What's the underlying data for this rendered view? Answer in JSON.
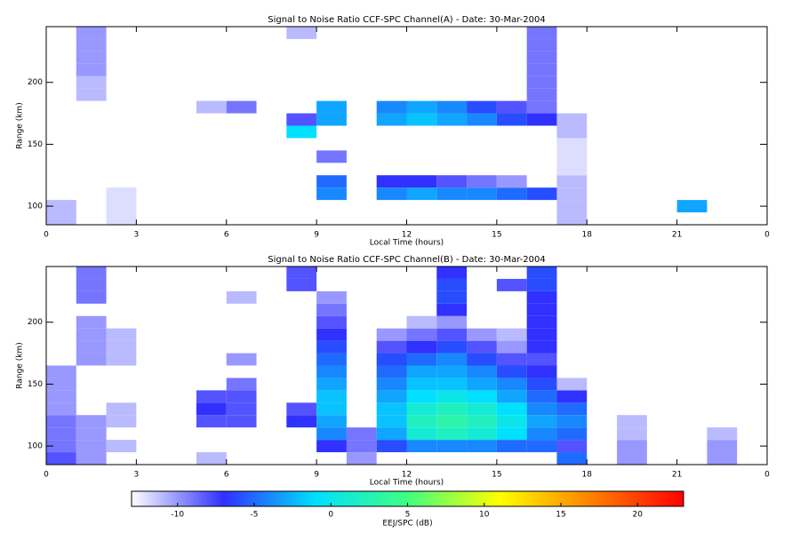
{
  "chart_data": [
    {
      "type": "heatmap",
      "title": "Signal to Noise Ratio CCF-SPC Channel(A) - Date: 30-Mar-2004",
      "xlabel": "Local Time (hours)",
      "ylabel": "Range (km)",
      "x": [
        0,
        1,
        2,
        3,
        4,
        5,
        6,
        7,
        8,
        9,
        10,
        11,
        12,
        13,
        14,
        15,
        16,
        17,
        18,
        19,
        20,
        21,
        22,
        23,
        24
      ],
      "y": [
        85,
        95,
        105,
        115,
        125,
        135,
        145,
        155,
        165,
        175,
        185,
        195,
        205,
        215,
        225,
        235,
        245
      ],
      "xlim": [
        0,
        24
      ],
      "xticks": [
        0,
        3,
        6,
        9,
        12,
        15,
        18,
        21,
        {
          "value": 24,
          "label": "0"
        }
      ],
      "ylim": [
        85,
        245
      ],
      "yticks": [
        100,
        150,
        200
      ],
      "z": [
        [
          -11,
          null,
          -12,
          null,
          null,
          null,
          null,
          null,
          null,
          null,
          null,
          null,
          null,
          null,
          null,
          null,
          null,
          -11,
          null,
          null,
          null,
          null,
          null,
          null
        ],
        [
          -11,
          null,
          -12,
          null,
          null,
          null,
          null,
          null,
          null,
          null,
          null,
          null,
          null,
          null,
          null,
          null,
          null,
          -11,
          null,
          null,
          null,
          -3,
          null,
          null
        ],
        [
          null,
          null,
          -12,
          null,
          null,
          null,
          null,
          null,
          null,
          -4,
          null,
          -4,
          -3,
          -4,
          -4,
          -5,
          -6,
          -11,
          null,
          null,
          null,
          null,
          null,
          null
        ],
        [
          null,
          null,
          null,
          null,
          null,
          null,
          null,
          null,
          null,
          -5,
          null,
          -7,
          -7,
          -8,
          -9,
          -10,
          null,
          -11,
          null,
          null,
          null,
          null,
          null,
          null
        ],
        [
          null,
          null,
          null,
          null,
          null,
          null,
          null,
          null,
          null,
          null,
          null,
          null,
          null,
          null,
          null,
          null,
          null,
          -12,
          null,
          null,
          null,
          null,
          null,
          null
        ],
        [
          null,
          null,
          null,
          null,
          null,
          null,
          null,
          null,
          null,
          -9,
          null,
          null,
          null,
          null,
          null,
          null,
          null,
          -12,
          null,
          null,
          null,
          null,
          null,
          null
        ],
        [
          null,
          null,
          null,
          null,
          null,
          null,
          null,
          null,
          null,
          null,
          null,
          null,
          null,
          null,
          null,
          null,
          null,
          -12,
          null,
          null,
          null,
          null,
          null,
          null
        ],
        [
          null,
          null,
          null,
          null,
          null,
          null,
          null,
          null,
          -1,
          null,
          null,
          null,
          null,
          null,
          null,
          null,
          null,
          -11,
          null,
          null,
          null,
          null,
          null,
          null
        ],
        [
          null,
          null,
          null,
          null,
          null,
          null,
          null,
          null,
          -8,
          -3,
          null,
          -3,
          -2,
          -3,
          -4,
          -6,
          -7,
          -11,
          null,
          null,
          null,
          null,
          null,
          null
        ],
        [
          null,
          null,
          null,
          null,
          null,
          -11,
          -9,
          null,
          null,
          -3,
          null,
          -4,
          -3,
          -4,
          -6,
          -8,
          -9,
          null,
          null,
          null,
          null,
          null,
          null,
          null
        ],
        [
          null,
          -11,
          null,
          null,
          null,
          null,
          null,
          null,
          null,
          null,
          null,
          null,
          null,
          null,
          null,
          null,
          -9,
          null,
          null,
          null,
          null,
          null,
          null,
          null
        ],
        [
          null,
          -11,
          null,
          null,
          null,
          null,
          null,
          null,
          null,
          null,
          null,
          null,
          null,
          null,
          null,
          null,
          -9,
          null,
          null,
          null,
          null,
          null,
          null,
          null
        ],
        [
          null,
          -10,
          null,
          null,
          null,
          null,
          null,
          null,
          null,
          null,
          null,
          null,
          null,
          null,
          null,
          null,
          -9,
          null,
          null,
          null,
          null,
          null,
          null,
          null
        ],
        [
          null,
          -10,
          null,
          null,
          null,
          null,
          null,
          null,
          null,
          null,
          null,
          null,
          null,
          null,
          null,
          null,
          -9,
          null,
          null,
          null,
          null,
          null,
          null,
          null
        ],
        [
          null,
          -10,
          null,
          null,
          null,
          null,
          null,
          null,
          null,
          null,
          null,
          null,
          null,
          null,
          null,
          null,
          -9,
          null,
          null,
          null,
          null,
          null,
          null,
          null
        ],
        [
          null,
          -10,
          null,
          null,
          null,
          null,
          null,
          null,
          -11,
          null,
          null,
          null,
          null,
          null,
          null,
          null,
          -9,
          null,
          null,
          null,
          null,
          null,
          null,
          null
        ]
      ]
    },
    {
      "type": "heatmap",
      "title": "Signal to Noise Ratio CCF-SPC Channel(B) - Date: 30-Mar-2004",
      "xlabel": "Local Time (hours)",
      "ylabel": "Range (km)",
      "x": [
        0,
        1,
        2,
        3,
        4,
        5,
        6,
        7,
        8,
        9,
        10,
        11,
        12,
        13,
        14,
        15,
        16,
        17,
        18,
        19,
        20,
        21,
        22,
        23,
        24
      ],
      "y": [
        85,
        95,
        105,
        115,
        125,
        135,
        145,
        155,
        165,
        175,
        185,
        195,
        205,
        215,
        225,
        235,
        245
      ],
      "xlim": [
        0,
        24
      ],
      "xticks": [
        0,
        3,
        6,
        9,
        12,
        15,
        18,
        21,
        {
          "value": 24,
          "label": "0"
        }
      ],
      "ylim": [
        85,
        245
      ],
      "yticks": [
        100,
        150,
        200
      ],
      "z": [
        [
          -8,
          -10,
          null,
          null,
          null,
          -11,
          null,
          null,
          null,
          null,
          -10,
          null,
          null,
          null,
          null,
          null,
          null,
          -5,
          null,
          -10,
          null,
          null,
          -10,
          null
        ],
        [
          -9,
          -10,
          -11,
          null,
          null,
          null,
          null,
          null,
          null,
          -7,
          -9,
          -6,
          -4,
          -4,
          -4,
          -5,
          -5,
          -8,
          null,
          -10,
          null,
          null,
          -10,
          null
        ],
        [
          -9,
          -10,
          null,
          null,
          null,
          null,
          null,
          null,
          null,
          -4,
          -9,
          -3,
          1,
          2,
          1,
          -1,
          -4,
          -5,
          null,
          -11,
          null,
          null,
          -11,
          null
        ],
        [
          -9,
          -10,
          -11,
          null,
          null,
          -8,
          -8,
          null,
          -7,
          -3,
          null,
          -2,
          2,
          3,
          2,
          0,
          -3,
          -4,
          null,
          -11,
          null,
          null,
          null,
          null
        ],
        [
          -10,
          null,
          -11,
          null,
          null,
          -7,
          -8,
          null,
          -8,
          -2,
          null,
          -2,
          1,
          2,
          1,
          -1,
          -4,
          -5,
          null,
          null,
          null,
          null,
          null,
          null
        ],
        [
          -10,
          null,
          null,
          null,
          null,
          -8,
          -8,
          null,
          null,
          -2,
          null,
          -3,
          -1,
          0,
          -1,
          -3,
          -5,
          -7,
          null,
          null,
          null,
          null,
          null,
          null
        ],
        [
          -10,
          null,
          null,
          null,
          null,
          null,
          -9,
          null,
          null,
          -3,
          null,
          -4,
          -2,
          -2,
          -3,
          -4,
          -6,
          -11,
          null,
          null,
          null,
          null,
          null,
          null
        ],
        [
          -10,
          null,
          null,
          null,
          null,
          null,
          null,
          null,
          null,
          -4,
          null,
          -5,
          -3,
          -3,
          -4,
          -6,
          -7,
          null,
          null,
          null,
          null,
          null,
          null,
          null
        ],
        [
          null,
          -10,
          -11,
          null,
          null,
          null,
          -10,
          null,
          null,
          -5,
          null,
          -6,
          -5,
          -4,
          -6,
          -8,
          -8,
          null,
          null,
          null,
          null,
          null,
          null,
          null
        ],
        [
          null,
          -10,
          -11,
          null,
          null,
          null,
          null,
          null,
          null,
          -6,
          null,
          -8,
          -7,
          -6,
          -8,
          -10,
          -7,
          null,
          null,
          null,
          null,
          null,
          null,
          null
        ],
        [
          null,
          -10,
          -11,
          null,
          null,
          null,
          null,
          null,
          null,
          -7,
          null,
          -10,
          -9,
          -8,
          -10,
          -11,
          -7,
          null,
          null,
          null,
          null,
          null,
          null,
          null
        ],
        [
          null,
          -10,
          null,
          null,
          null,
          null,
          null,
          null,
          null,
          -8,
          null,
          null,
          -11,
          -10,
          null,
          null,
          -7,
          null,
          null,
          null,
          null,
          null,
          null,
          null
        ],
        [
          null,
          null,
          null,
          null,
          null,
          null,
          null,
          null,
          null,
          -9,
          null,
          null,
          null,
          -7,
          null,
          null,
          -7,
          null,
          null,
          null,
          null,
          null,
          null,
          null
        ],
        [
          null,
          -9,
          null,
          null,
          null,
          null,
          -11,
          null,
          null,
          -10,
          null,
          null,
          null,
          -6,
          null,
          null,
          -7,
          null,
          null,
          null,
          null,
          null,
          null,
          null
        ],
        [
          null,
          -9,
          null,
          null,
          null,
          null,
          null,
          null,
          -8,
          null,
          null,
          null,
          null,
          -6,
          null,
          -8,
          -6,
          null,
          null,
          null,
          null,
          null,
          null,
          null
        ],
        [
          null,
          -9,
          null,
          null,
          null,
          null,
          null,
          null,
          -8,
          null,
          null,
          null,
          null,
          -7,
          null,
          null,
          -6,
          null,
          null,
          null,
          null,
          null,
          null,
          null
        ]
      ]
    }
  ],
  "colorbar": {
    "label": "EEJ/SPC (dB)",
    "lim": [
      -13,
      23
    ],
    "ticks": [
      -10,
      -5,
      0,
      5,
      10,
      15,
      20
    ],
    "colors": [
      "#ffffff",
      "#3030ff",
      "#00e0ff",
      "#40ff80",
      "#ffff00",
      "#ff8000",
      "#ff0000"
    ]
  }
}
